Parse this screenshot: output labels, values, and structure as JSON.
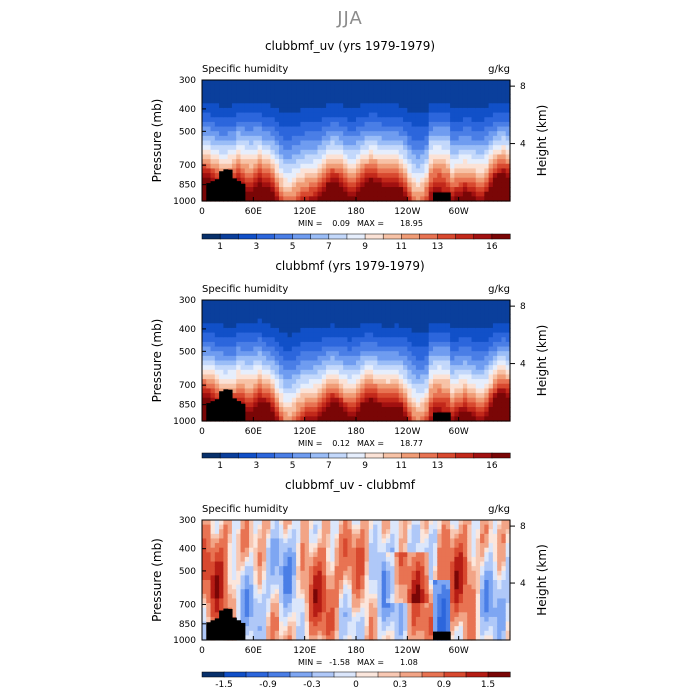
{
  "figure": {
    "season_title": "JJA"
  },
  "chart_data": [
    {
      "type": "heatmap",
      "title": "clubbmf_uv (yrs 1979-1979)",
      "left_label": "Specific humidity",
      "right_label": "g/kg",
      "ylabel": "Pressure (mb)",
      "y2label": "Height (km)",
      "x_ticks": [
        "0",
        "60E",
        "120E",
        "180",
        "120W",
        "60W"
      ],
      "x_tick_lon": [
        0,
        60,
        120,
        180,
        240,
        300
      ],
      "xlim": [
        0,
        360
      ],
      "y_ticks": [
        "300",
        "400",
        "500",
        "700",
        "850",
        "1000"
      ],
      "y_tick_values": [
        300,
        400,
        500,
        700,
        850,
        1000
      ],
      "ylim": [
        300,
        1000
      ],
      "y2_ticks": [
        "8",
        "4"
      ],
      "y2_tick_km": [
        8,
        4
      ],
      "min_label": "MIN =",
      "min_value": "0.09",
      "max_label": "MAX =",
      "max_value": "18.95",
      "field": "q",
      "colorbar_levels": [
        0,
        1,
        2,
        3,
        4,
        5,
        6,
        7,
        8,
        9,
        10,
        11,
        12,
        13,
        14,
        15,
        16,
        17
      ],
      "colorbar_labels": [
        "1",
        "3",
        "5",
        "7",
        "9",
        "11",
        "13",
        "16"
      ],
      "colorbar_label_index": [
        1,
        3,
        5,
        7,
        9,
        11,
        13,
        16
      ]
    },
    {
      "type": "heatmap",
      "title": "clubbmf (yrs 1979-1979)",
      "left_label": "Specific humidity",
      "right_label": "g/kg",
      "ylabel": "Pressure (mb)",
      "y2label": "Height (km)",
      "x_ticks": [
        "0",
        "60E",
        "120E",
        "180",
        "120W",
        "60W"
      ],
      "x_tick_lon": [
        0,
        60,
        120,
        180,
        240,
        300
      ],
      "xlim": [
        0,
        360
      ],
      "y_ticks": [
        "300",
        "400",
        "500",
        "700",
        "850",
        "1000"
      ],
      "y_tick_values": [
        300,
        400,
        500,
        700,
        850,
        1000
      ],
      "ylim": [
        300,
        1000
      ],
      "y2_ticks": [
        "8",
        "4"
      ],
      "y2_tick_km": [
        8,
        4
      ],
      "min_label": "MIN =",
      "min_value": "0.12",
      "max_label": "MAX =",
      "max_value": "18.77",
      "field": "q",
      "colorbar_levels": [
        0,
        1,
        2,
        3,
        4,
        5,
        6,
        7,
        8,
        9,
        10,
        11,
        12,
        13,
        14,
        15,
        16,
        17
      ],
      "colorbar_labels": [
        "1",
        "3",
        "5",
        "7",
        "9",
        "11",
        "13",
        "16"
      ],
      "colorbar_label_index": [
        1,
        3,
        5,
        7,
        9,
        11,
        13,
        16
      ]
    },
    {
      "type": "heatmap",
      "title": "clubbmf_uv - clubbmf",
      "left_label": "Specific humidity",
      "right_label": "g/kg",
      "ylabel": "Pressure (mb)",
      "y2label": "Height (km)",
      "x_ticks": [
        "0",
        "60E",
        "120E",
        "180",
        "120W",
        "60W"
      ],
      "x_tick_lon": [
        0,
        60,
        120,
        180,
        240,
        300
      ],
      "xlim": [
        0,
        360
      ],
      "y_ticks": [
        "300",
        "400",
        "500",
        "700",
        "850",
        "1000"
      ],
      "y_tick_values": [
        300,
        400,
        500,
        700,
        850,
        1000
      ],
      "ylim": [
        300,
        1000
      ],
      "y2_ticks": [
        "8",
        "4"
      ],
      "y2_tick_km": [
        8,
        4
      ],
      "min_label": "MIN =",
      "min_value": "-1.58",
      "max_label": "MAX =",
      "max_value": "1.08",
      "field": "diff",
      "colorbar_levels": [
        -1.8,
        -1.5,
        -1.2,
        -0.9,
        -0.6,
        -0.3,
        -0.1,
        0,
        0.1,
        0.3,
        0.6,
        0.9,
        1.2,
        1.5,
        1.8
      ],
      "colorbar_labels": [
        "-1.5",
        "-0.9",
        "-0.3",
        "0",
        "0.3",
        "0.9",
        "1.5"
      ],
      "colorbar_label_index": [
        1,
        3,
        5,
        7,
        9,
        11,
        13
      ]
    }
  ],
  "palettes": {
    "q": [
      "#08306b",
      "#0a3f9c",
      "#1150c8",
      "#2c66dc",
      "#4a7ee6",
      "#6f9cf0",
      "#9abdf7",
      "#c3d8fb",
      "#e6eefc",
      "#fbe2d6",
      "#f7c2a6",
      "#f09c76",
      "#e87352",
      "#d8492f",
      "#c2281a",
      "#a11010",
      "#7a0606"
    ],
    "diff": [
      "#08306b",
      "#1150c8",
      "#2c66dc",
      "#4a7ee6",
      "#7ea6f2",
      "#afc8f8",
      "#dbe6fb",
      "#fbe6dc",
      "#f8c8b3",
      "#f2a486",
      "#e87352",
      "#d8492f",
      "#b51c14",
      "#7a0606"
    ],
    "terrain": "#000000"
  }
}
